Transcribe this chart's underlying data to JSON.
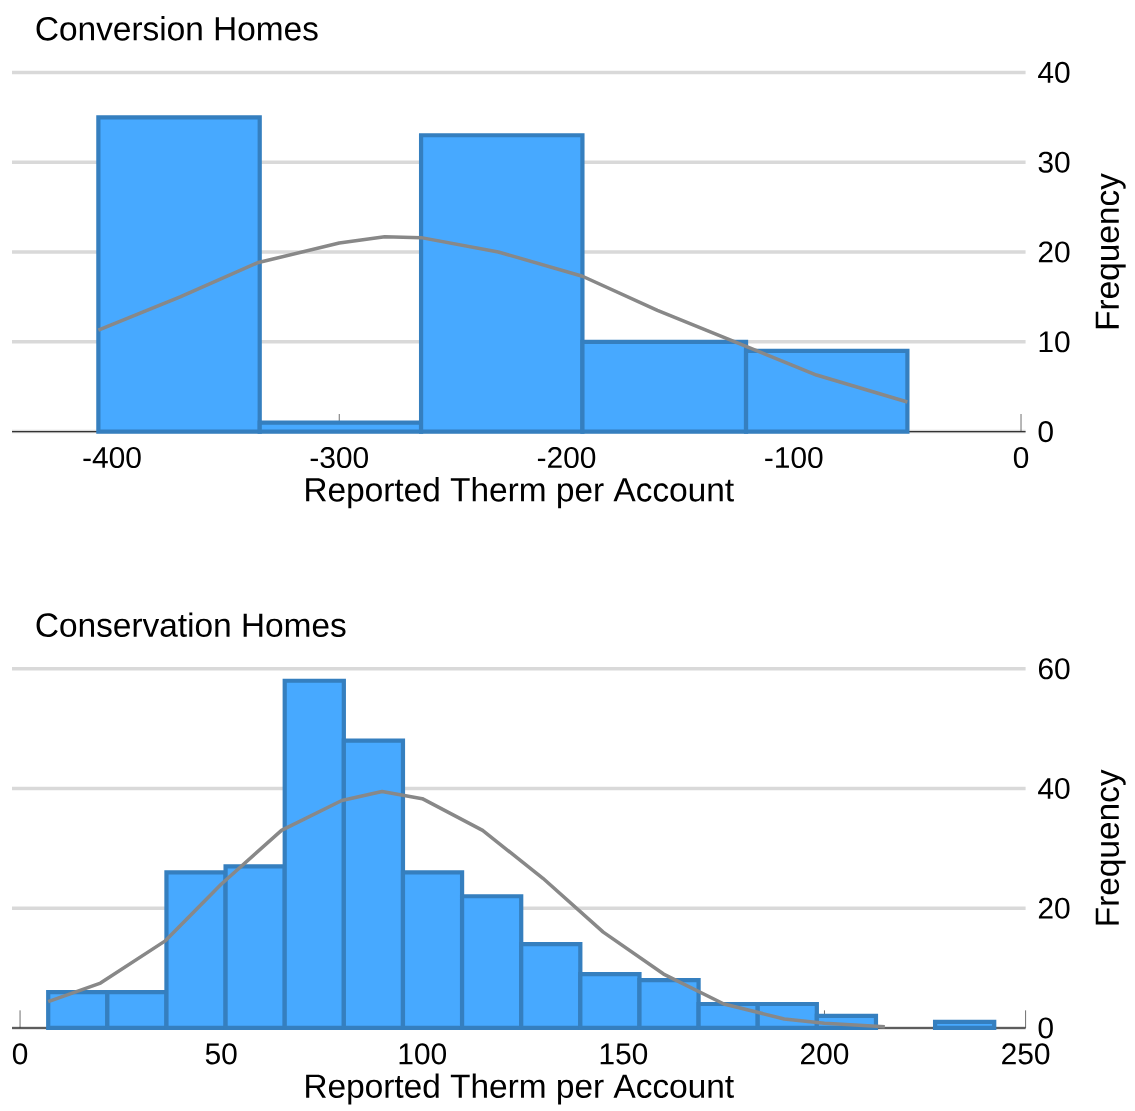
{
  "chart_data": [
    {
      "type": "histogram",
      "title": "Conversion Homes",
      "xlabel": "Reported Therm per Account",
      "ylabel": "Frequency",
      "xlim": [
        -444,
        2
      ],
      "xticks": [
        -400,
        -300,
        -200,
        -100,
        0
      ],
      "ylim": [
        0,
        40
      ],
      "yticks": [
        0,
        10,
        20,
        30,
        40
      ],
      "grid": "y",
      "series": [
        {
          "color": "#47a9ff",
          "bins": [
            -406,
            -335,
            -264,
            -193,
            -121,
            -50
          ],
          "values": [
            35,
            1,
            33,
            10,
            9
          ]
        },
        {
          "type": "line",
          "color": "#888888",
          "x": [
            -406,
            -370,
            -336,
            -300,
            -280,
            -264,
            -230,
            -193,
            -160,
            -121,
            -90,
            -50
          ],
          "values": [
            11.3,
            15,
            18.8,
            21,
            21.7,
            21.6,
            20,
            17.3,
            13.5,
            9.5,
            6.3,
            3.3
          ]
        }
      ]
    },
    {
      "type": "histogram",
      "title": "Conservation Homes",
      "xlabel": "Reported Therm per Account",
      "ylabel": "Frequency",
      "xlim": [
        -2,
        250
      ],
      "xticks": [
        0,
        50,
        100,
        150,
        200,
        250
      ],
      "ylim": [
        0,
        60
      ],
      "yticks": [
        0,
        20,
        40,
        60
      ],
      "grid": "y",
      "series": [
        {
          "color": "#47a9ff",
          "bins": [
            7,
            21.7,
            36.4,
            51.1,
            65.8,
            80.5,
            95.2,
            109.9,
            124.6,
            139.3,
            154,
            168.7,
            183.4,
            198.1,
            212.8,
            227.5,
            242.2
          ],
          "values": [
            6,
            6,
            26,
            27,
            58,
            48,
            26,
            22,
            14,
            9,
            8,
            4,
            4,
            2,
            0,
            1
          ]
        },
        {
          "type": "line",
          "color": "#888888",
          "x": [
            7,
            20,
            36,
            50,
            65,
            80,
            90,
            100,
            115,
            130,
            145,
            160,
            175,
            190,
            200,
            215
          ],
          "values": [
            4.4,
            7.5,
            14.5,
            24,
            33,
            38,
            39.5,
            38.3,
            33,
            25,
            16,
            9,
            4,
            1.5,
            0.8,
            0.2
          ]
        }
      ]
    }
  ]
}
